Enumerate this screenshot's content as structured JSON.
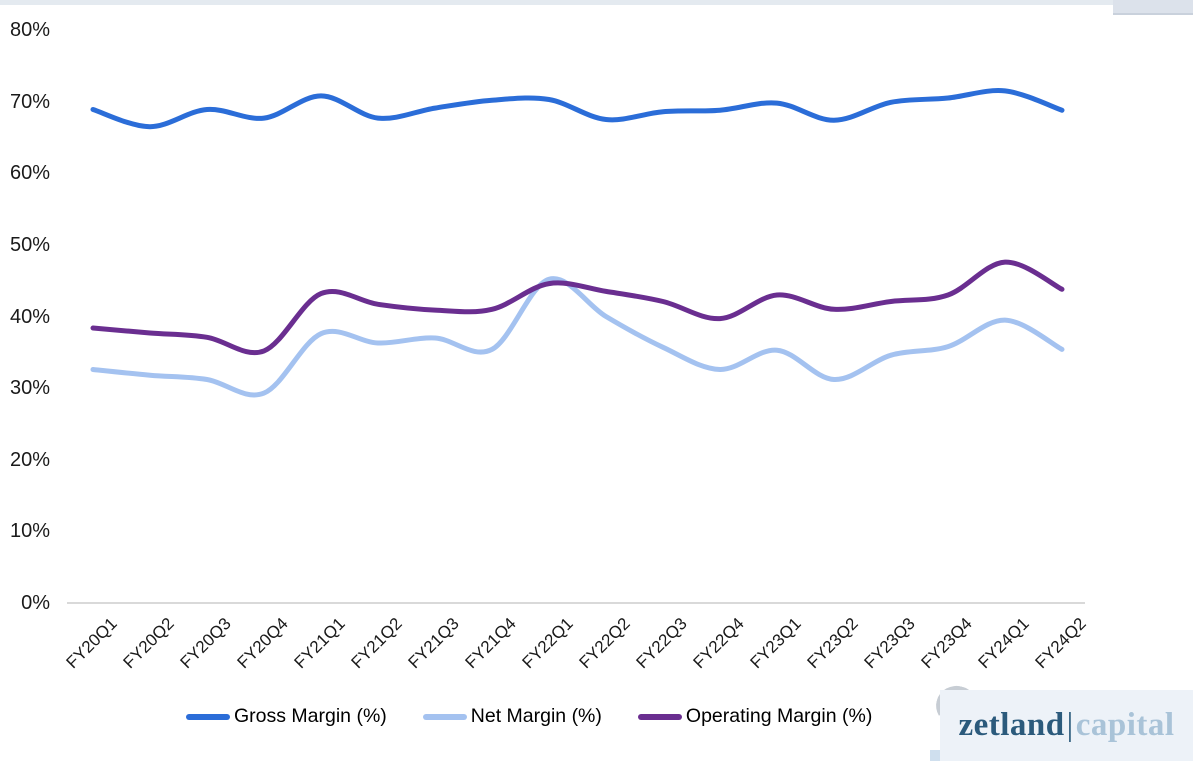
{
  "page": {
    "background": "#ffffff",
    "top_strip_color": "#e4eaf0",
    "top_right_block_color": "#dce2eb"
  },
  "chart_data": {
    "type": "line",
    "title": "",
    "xlabel": "",
    "ylabel": "",
    "categories": [
      "FY20Q1",
      "FY20Q2",
      "FY20Q3",
      "FY20Q4",
      "FY21Q1",
      "FY21Q2",
      "FY21Q3",
      "FY21Q4",
      "FY22Q1",
      "FY22Q2",
      "FY22Q3",
      "FY22Q4",
      "FY23Q1",
      "FY23Q2",
      "FY23Q3",
      "FY23Q4",
      "FY24Q1",
      "FY24Q2"
    ],
    "series": [
      {
        "name": "Net Margin (%)",
        "color": "#a4c2f0",
        "values": [
          32.6,
          31.8,
          31.2,
          29.3,
          37.6,
          36.3,
          37.0,
          35.4,
          45.2,
          40.0,
          35.7,
          32.6,
          35.3,
          31.2,
          34.6,
          35.8,
          39.5,
          35.4
        ]
      },
      {
        "name": "Operating Margin (%)",
        "color": "#6a2e90",
        "values": [
          38.4,
          37.7,
          37.1,
          35.2,
          43.2,
          41.7,
          40.9,
          41.0,
          44.6,
          43.5,
          42.1,
          39.7,
          43.0,
          41.0,
          42.1,
          43.0,
          47.6,
          43.8
        ]
      },
      {
        "name": "Gross Margin (%)",
        "color": "#2b6dd8",
        "values": [
          68.9,
          66.5,
          68.9,
          67.7,
          70.8,
          67.7,
          69.1,
          70.2,
          70.3,
          67.5,
          68.6,
          68.8,
          69.8,
          67.4,
          69.9,
          70.5,
          71.5,
          68.8
        ]
      }
    ],
    "y_ticks": [
      "0%",
      "10%",
      "20%",
      "30%",
      "40%",
      "50%",
      "60%",
      "70%",
      "80%"
    ],
    "ylim": [
      0,
      80
    ],
    "grid": false,
    "legend_position": "bottom",
    "axis_color": "#d9d9d9",
    "tick_label_color": "#1a1a1a"
  },
  "legend": {
    "items": [
      "Gross Margin (%)",
      "Net Margin (%)",
      "Operating Margin (%)"
    ],
    "colors": [
      "#2b6dd8",
      "#a4c2f0",
      "#6a2e90"
    ]
  },
  "logo": {
    "word1": "zetland",
    "divider": "|",
    "word2": "capital",
    "word1_color": "#2b5a7c",
    "word2_color": "#a9c3d8",
    "background": "#edf2f8"
  }
}
